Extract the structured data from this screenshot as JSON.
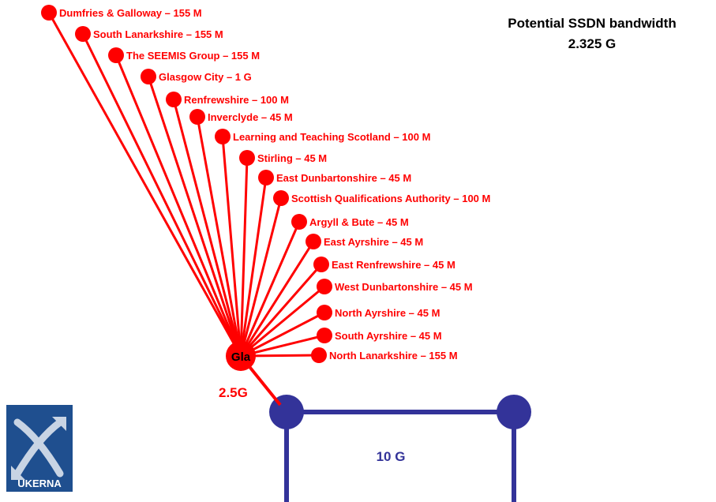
{
  "colors": {
    "link": "#ff0000",
    "core": "#333399",
    "logo_bg": "#1f4f8f",
    "text": "#000000"
  },
  "title": {
    "line1": "Potential SSDN bandwidth",
    "line2": "2.325 G"
  },
  "hub": {
    "label": "Gla",
    "uplink_label": "2.5G"
  },
  "core": {
    "label": "10 G"
  },
  "logo": {
    "text": "UKERNA",
    "icon": "ukerna-crossing-arrows-icon"
  },
  "sites": [
    {
      "label": "Dumfries & Galloway – 155 M"
    },
    {
      "label": "South Lanarkshire – 155 M"
    },
    {
      "label": "The SEEMIS Group – 155 M"
    },
    {
      "label": "Glasgow City – 1 G"
    },
    {
      "label": "Renfrewshire – 100 M"
    },
    {
      "label": "Inverclyde – 45 M"
    },
    {
      "label": "Learning and Teaching Scotland – 100 M"
    },
    {
      "label": "Stirling – 45 M"
    },
    {
      "label": "East Dunbartonshire – 45 M"
    },
    {
      "label": "Scottish Qualifications Authority – 100 M"
    },
    {
      "label": "Argyll & Bute – 45 M"
    },
    {
      "label": "East Ayrshire – 45 M"
    },
    {
      "label": "East Renfrewshire – 45 M"
    },
    {
      "label": "West Dunbartonshire – 45 M"
    },
    {
      "label": "North Ayrshire – 45 M"
    },
    {
      "label": "South Ayrshire – 45 M"
    },
    {
      "label": "North Lanarkshire – 155 M"
    }
  ]
}
